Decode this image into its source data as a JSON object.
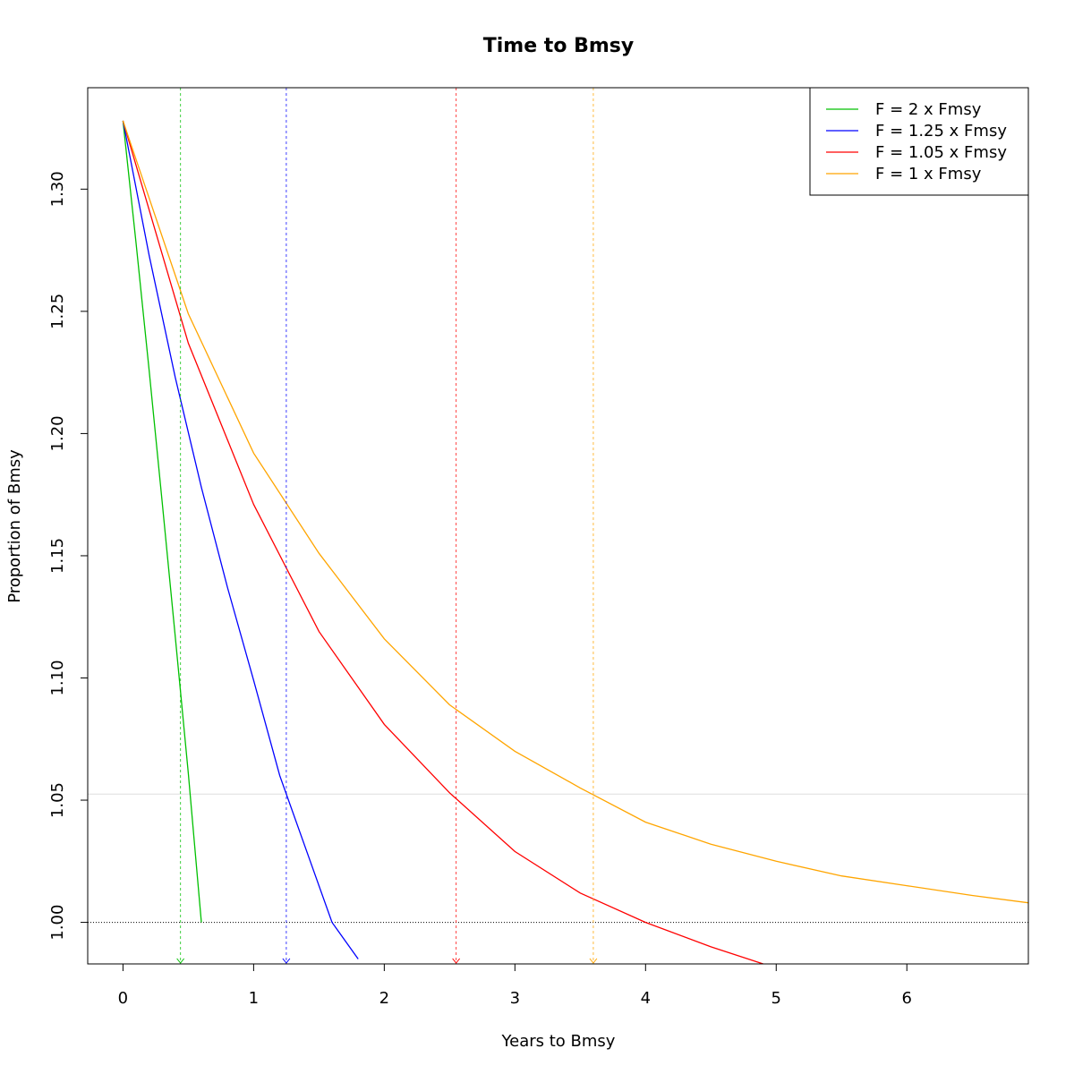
{
  "chart_data": {
    "type": "line",
    "title": "Time to Bmsy",
    "xlabel": "Years to Bmsy",
    "ylabel": "Proportion of Bmsy",
    "xlim": [
      -0.27,
      6.93
    ],
    "ylim": [
      0.983,
      1.3415
    ],
    "xticks": [
      "0",
      "1",
      "2",
      "3",
      "4",
      "5",
      "6"
    ],
    "yticks": [
      "1.00",
      "1.05",
      "1.10",
      "1.15",
      "1.20",
      "1.25",
      "1.30"
    ],
    "xtick_values": [
      0,
      1,
      2,
      3,
      4,
      5,
      6
    ],
    "ytick_values": [
      1.0,
      1.05,
      1.1,
      1.15,
      1.2,
      1.25,
      1.3
    ],
    "grid": false,
    "legend_position": "top-right",
    "reference_lines": {
      "bmsy_line": 1.0,
      "threshold_line": 1.0525
    },
    "series": [
      {
        "name": "F = 2 x Fmsy",
        "color": "#00c000",
        "x": [
          0,
          0.1,
          0.2,
          0.3,
          0.4,
          0.5,
          0.6
        ],
        "y": [
          1.328,
          1.278,
          1.226,
          1.172,
          1.117,
          1.061,
          1.0
        ],
        "time_to_target": 0.44
      },
      {
        "name": "F = 1.25 x Fmsy",
        "color": "#0000ff",
        "x": [
          0,
          0.2,
          0.4,
          0.6,
          0.8,
          1.0,
          1.2,
          1.4,
          1.6,
          1.8
        ],
        "y": [
          1.328,
          1.273,
          1.223,
          1.178,
          1.137,
          1.099,
          1.06,
          1.03,
          1.0,
          0.985
        ],
        "time_to_target": 1.25
      },
      {
        "name": "F = 1.05 x Fmsy",
        "color": "#ff0000",
        "x": [
          0,
          0.5,
          1.0,
          1.5,
          2.0,
          2.5,
          3.0,
          3.5,
          4.0,
          4.5,
          4.9
        ],
        "y": [
          1.328,
          1.237,
          1.171,
          1.119,
          1.081,
          1.053,
          1.029,
          1.012,
          1.0,
          0.99,
          0.983
        ],
        "time_to_target": 2.55
      },
      {
        "name": "F = 1 x Fmsy",
        "color": "#ffa500",
        "x": [
          0,
          0.5,
          1.0,
          1.5,
          2.0,
          2.5,
          3.0,
          3.5,
          4.0,
          4.5,
          5.0,
          5.5,
          6.0,
          6.5,
          6.93
        ],
        "y": [
          1.328,
          1.249,
          1.192,
          1.151,
          1.116,
          1.089,
          1.07,
          1.055,
          1.041,
          1.032,
          1.025,
          1.019,
          1.015,
          1.011,
          1.008
        ],
        "time_to_target": 3.6
      }
    ]
  }
}
